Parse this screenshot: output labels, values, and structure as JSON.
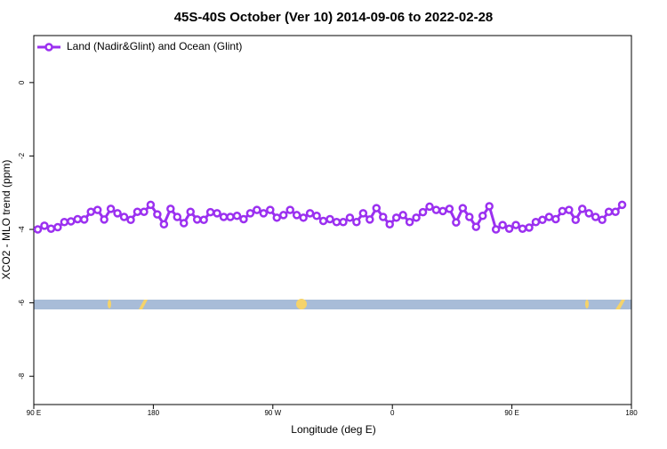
{
  "chart_data": {
    "type": "line",
    "title": "45S-40S October (Ver 10)   2014-09-06 to 2022-02-28",
    "xlabel": "Longitude (deg E)",
    "ylabel": "XCO2 - MLO trend (ppm)",
    "xlim": [
      90,
      540
    ],
    "xticks": [
      {
        "value": 90,
        "label": "90 E"
      },
      180,
      {
        "value": 270,
        "label": "90 W"
      },
      {
        "value": 360,
        "label": "0"
      },
      {
        "value": 450,
        "label": "90 E"
      },
      {
        "value": 540,
        "label": "180"
      }
    ],
    "ylim": [
      -8.77,
      1.28
    ],
    "yticks": [
      0,
      -2,
      -4,
      -6,
      -8
    ],
    "legend": "upper left",
    "x": [
      93,
      98,
      103,
      108,
      113,
      118,
      123,
      128,
      133,
      138,
      143,
      148,
      153,
      158,
      163,
      168,
      173,
      178,
      183,
      188,
      193,
      198,
      203,
      208,
      213,
      218,
      223,
      228,
      233,
      238,
      243,
      248,
      253,
      258,
      263,
      268,
      273,
      278,
      283,
      288,
      293,
      298,
      303,
      308,
      313,
      318,
      323,
      328,
      333,
      338,
      343,
      348,
      353,
      358,
      363,
      368,
      373,
      378,
      383,
      388,
      393,
      398,
      403,
      408,
      413,
      418,
      423,
      428,
      433,
      438,
      443,
      448,
      453,
      458,
      463,
      468,
      473,
      478,
      483,
      488,
      493,
      498,
      503,
      508,
      513,
      518,
      523,
      528,
      533
    ],
    "series": [
      {
        "name": "Land (Nadir&Glint) and Ocean (Glint)",
        "color": "#9b30f0",
        "values": [
          -4.0,
          -3.9,
          -3.98,
          -3.94,
          -3.8,
          -3.78,
          -3.72,
          -3.73,
          -3.52,
          -3.47,
          -3.73,
          -3.44,
          -3.56,
          -3.66,
          -3.74,
          -3.52,
          -3.52,
          -3.33,
          -3.59,
          -3.86,
          -3.44,
          -3.66,
          -3.83,
          -3.52,
          -3.73,
          -3.74,
          -3.53,
          -3.56,
          -3.66,
          -3.66,
          -3.63,
          -3.72,
          -3.56,
          -3.47,
          -3.56,
          -3.47,
          -3.68,
          -3.61,
          -3.47,
          -3.61,
          -3.68,
          -3.56,
          -3.63,
          -3.77,
          -3.72,
          -3.8,
          -3.8,
          -3.68,
          -3.8,
          -3.56,
          -3.73,
          -3.42,
          -3.66,
          -3.86,
          -3.68,
          -3.61,
          -3.8,
          -3.68,
          -3.53,
          -3.38,
          -3.47,
          -3.5,
          -3.44,
          -3.81,
          -3.42,
          -3.66,
          -3.93,
          -3.63,
          -3.37,
          -4.0,
          -3.88,
          -3.98,
          -3.88,
          -3.98,
          -3.95,
          -3.8,
          -3.74,
          -3.66,
          -3.72,
          -3.5,
          -3.47,
          -3.74,
          -3.44,
          -3.56,
          -3.66,
          -3.74,
          -3.52,
          -3.52,
          -3.33
        ]
      }
    ]
  }
}
